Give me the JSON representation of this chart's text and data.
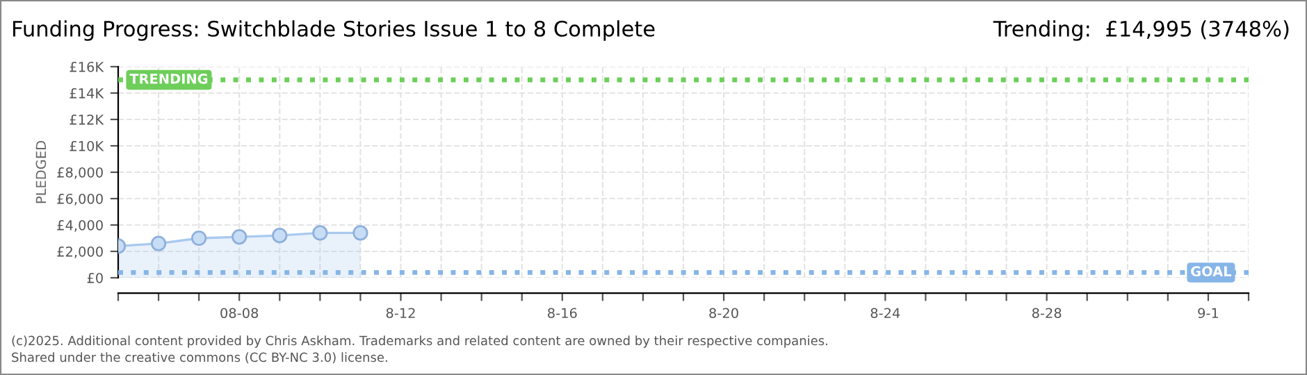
{
  "chart_data": {
    "type": "area",
    "title": "Funding Progress: Switchblade Stories Issue 1 to 8 Complete",
    "subtitle": "Trending:  £14,995 (3748%)",
    "ylabel": "PLEDGED",
    "x": [
      "2025-08-05",
      "2025-08-06",
      "2025-08-07",
      "2025-08-08",
      "2025-08-09",
      "2025-08-10",
      "2025-08-11"
    ],
    "series": [
      {
        "color": "#a9c9f0",
        "values": [
          2400,
          2600,
          3000,
          3100,
          3200,
          3400,
          3400
        ]
      }
    ],
    "marker": "circle",
    "grid": true,
    "legend": false,
    "xlim": [
      "2025-08-05",
      "2025-09-02"
    ],
    "xticks": [
      {
        "value": "2025-08-05",
        "label": null
      },
      {
        "value": "2025-08-06",
        "label": null
      },
      {
        "value": "2025-08-07",
        "label": null
      },
      {
        "value": "2025-08-08",
        "label": "08-08"
      },
      {
        "value": "2025-08-09",
        "label": null
      },
      {
        "value": "2025-08-10",
        "label": null
      },
      {
        "value": "2025-08-11",
        "label": null
      },
      {
        "value": "2025-08-12",
        "label": "8-12"
      },
      {
        "value": "2025-08-13",
        "label": null
      },
      {
        "value": "2025-08-14",
        "label": null
      },
      {
        "value": "2025-08-15",
        "label": null
      },
      {
        "value": "2025-08-16",
        "label": "8-16"
      },
      {
        "value": "2025-08-17",
        "label": null
      },
      {
        "value": "2025-08-18",
        "label": null
      },
      {
        "value": "2025-08-19",
        "label": null
      },
      {
        "value": "2025-08-20",
        "label": "8-20"
      },
      {
        "value": "2025-08-21",
        "label": null
      },
      {
        "value": "2025-08-22",
        "label": null
      },
      {
        "value": "2025-08-23",
        "label": null
      },
      {
        "value": "2025-08-24",
        "label": "8-24"
      },
      {
        "value": "2025-08-25",
        "label": null
      },
      {
        "value": "2025-08-26",
        "label": null
      },
      {
        "value": "2025-08-27",
        "label": null
      },
      {
        "value": "2025-08-28",
        "label": "8-28"
      },
      {
        "value": "2025-08-29",
        "label": null
      },
      {
        "value": "2025-08-30",
        "label": null
      },
      {
        "value": "2025-08-31",
        "label": null
      },
      {
        "value": "2025-09-01",
        "label": "9-1"
      },
      {
        "value": "2025-09-02",
        "label": null
      }
    ],
    "ylim": [
      0,
      16000
    ],
    "yticks": [
      {
        "value": 0,
        "label": "£0"
      },
      {
        "value": 2000,
        "label": "£2,000"
      },
      {
        "value": 4000,
        "label": "£4,000"
      },
      {
        "value": 6000,
        "label": "£6,000"
      },
      {
        "value": 8000,
        "label": "£8,000"
      },
      {
        "value": 10000,
        "label": "£10K"
      },
      {
        "value": 12000,
        "label": "£12K"
      },
      {
        "value": 14000,
        "label": "£14K"
      },
      {
        "value": 16000,
        "label": "£16K"
      }
    ],
    "ref_lines": [
      {
        "axis": "y",
        "value": 14995,
        "label": "TRENDING",
        "color": "#6dce5a",
        "line_style": "dotted"
      },
      {
        "axis": "y",
        "value": 400,
        "label": "GOAL",
        "color": "#86b5e8",
        "line_style": "dotted"
      }
    ],
    "annotations": [
      "(c)2025. Additional content provided by Chris Askham. Trademarks and related content are owned by their respective companies.",
      "Shared under the creative commons (CC BY-NC 3.0) license."
    ]
  }
}
